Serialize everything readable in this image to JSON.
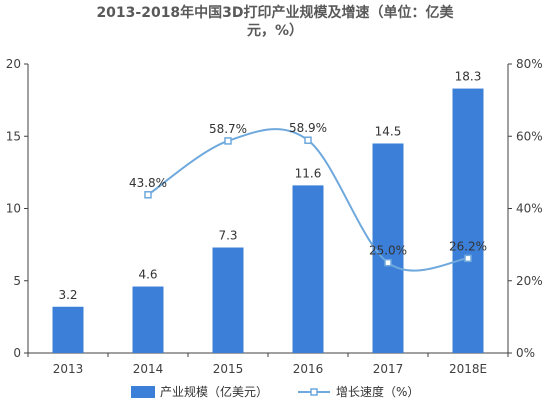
{
  "chart_data": {
    "type": "bar",
    "title_line1": "2013-2018年中国3D打印产业规模及增速（单位：亿美",
    "title_line2": "元，%）",
    "categories": [
      "2013",
      "2014",
      "2015",
      "2016",
      "2017",
      "2018E"
    ],
    "series": [
      {
        "name": "产业规模（亿美元）",
        "type": "bar",
        "axis": "left",
        "color": "#3b7fd9",
        "values": [
          3.2,
          4.6,
          7.3,
          11.6,
          14.5,
          18.3
        ],
        "labels": [
          "3.2",
          "4.6",
          "7.3",
          "11.6",
          "14.5",
          "18.3"
        ]
      },
      {
        "name": "增长速度（%）",
        "type": "line",
        "axis": "right",
        "color": "#6fa8dc",
        "values": [
          null,
          43.8,
          58.7,
          58.9,
          25.0,
          26.2
        ],
        "labels": [
          "",
          "43.8%",
          "58.7%",
          "58.9%",
          "25.0%",
          "26.2%"
        ]
      }
    ],
    "y_left": {
      "ylim": [
        0,
        20
      ],
      "ticks": [
        "0",
        "5",
        "10",
        "15",
        "20"
      ]
    },
    "y_right": {
      "ylim": [
        0,
        80
      ],
      "ticks": [
        "0%",
        "20%",
        "40%",
        "60%",
        "80%"
      ]
    },
    "legend_position": "bottom",
    "grid": false
  }
}
